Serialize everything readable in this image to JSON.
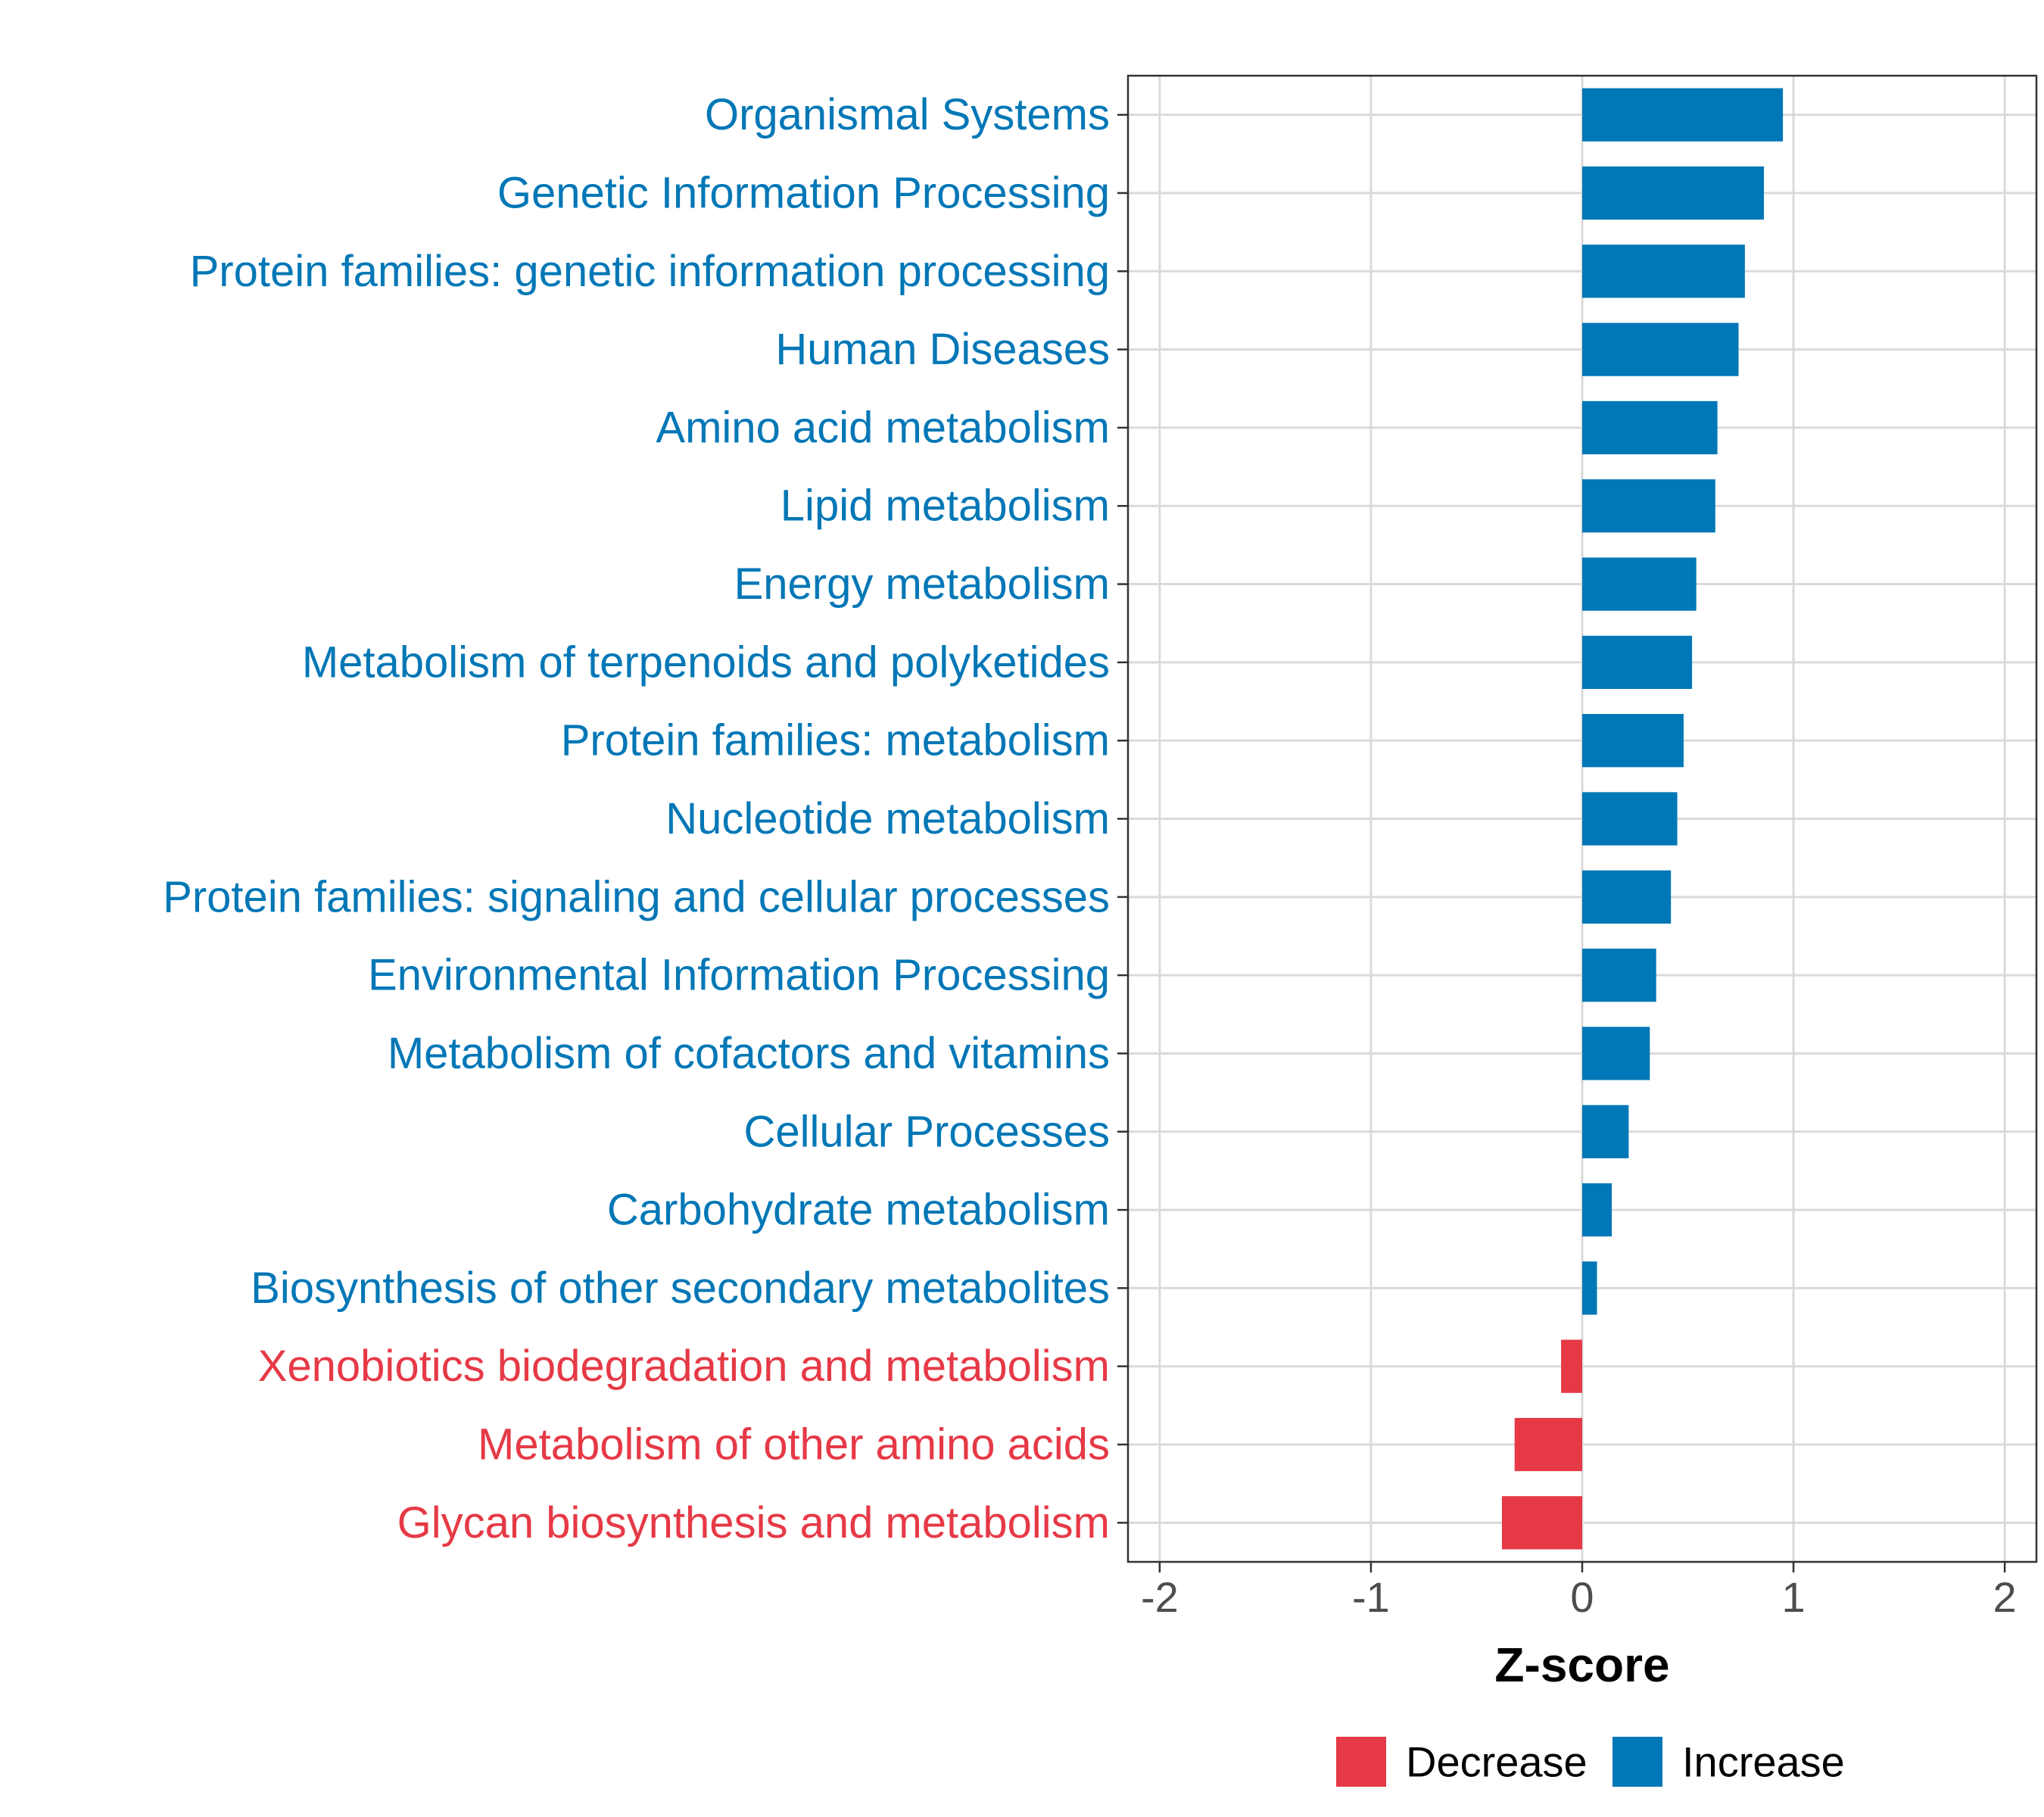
{
  "chart_data": {
    "type": "bar",
    "orientation": "horizontal",
    "categories": [
      "Organismal Systems",
      "Genetic Information Processing",
      "Protein families: genetic information processing",
      "Human Diseases",
      "Amino acid metabolism",
      "Lipid metabolism",
      "Energy metabolism",
      "Metabolism of terpenoids and polyketides",
      "Protein families: metabolism",
      "Nucleotide metabolism",
      "Protein families: signaling and cellular processes",
      "Environmental Information Processing",
      "Metabolism of cofactors and vitamins",
      "Cellular Processes",
      "Carbohydrate metabolism",
      "Biosynthesis of other secondary metabolites",
      "Xenobiotics biodegradation and metabolism",
      "Metabolism of other amino acids",
      "Glycan biosynthesis and metabolism"
    ],
    "values": [
      0.95,
      0.86,
      0.77,
      0.74,
      0.64,
      0.63,
      0.54,
      0.52,
      0.48,
      0.45,
      0.42,
      0.35,
      0.32,
      0.22,
      0.14,
      0.07,
      -0.1,
      -0.32,
      -0.38
    ],
    "groups": [
      "Increase",
      "Increase",
      "Increase",
      "Increase",
      "Increase",
      "Increase",
      "Increase",
      "Increase",
      "Increase",
      "Increase",
      "Increase",
      "Increase",
      "Increase",
      "Increase",
      "Increase",
      "Increase",
      "Decrease",
      "Decrease",
      "Decrease"
    ],
    "title": "",
    "xlabel": "Z-score",
    "ylabel": "",
    "xlim": [
      -2.15,
      2.15
    ],
    "xticks": [
      -2,
      -1,
      0,
      1,
      2
    ],
    "xtick_labels": [
      "-2",
      "-1",
      "0",
      "1",
      "2"
    ],
    "grid": true,
    "legend": {
      "position": "bottom",
      "entries": [
        {
          "label": "Decrease",
          "color": "#e63946"
        },
        {
          "label": "Increase",
          "color": "#0077b6"
        }
      ]
    },
    "colors": {
      "Increase": "#0077b6",
      "Decrease": "#e63946"
    }
  }
}
